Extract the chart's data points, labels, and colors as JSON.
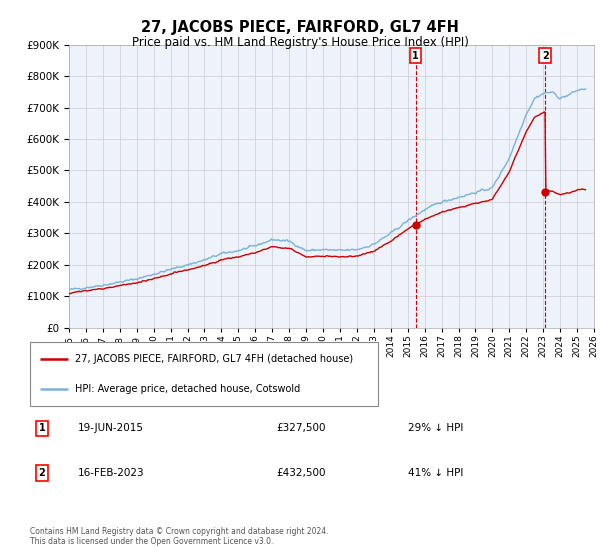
{
  "title": "27, JACOBS PIECE, FAIRFORD, GL7 4FH",
  "subtitle": "Price paid vs. HM Land Registry's House Price Index (HPI)",
  "hpi_label": "HPI: Average price, detached house, Cotswold",
  "pp_label": "27, JACOBS PIECE, FAIRFORD, GL7 4FH (detached house)",
  "hpi_color": "#7ab3d9",
  "pp_color": "#cc0000",
  "dashed_color": "#cc0000",
  "marker1_date_x": 2015.47,
  "marker1_price": 327500,
  "marker1_label": "19-JUN-2015",
  "marker1_amount": "£327,500",
  "marker1_pct": "29% ↓ HPI",
  "marker2_date_x": 2023.12,
  "marker2_price": 432500,
  "marker2_label": "16-FEB-2023",
  "marker2_amount": "£432,500",
  "marker2_pct": "41% ↓ HPI",
  "xlim": [
    1995,
    2026
  ],
  "ylim": [
    0,
    900000
  ],
  "yticks": [
    0,
    100000,
    200000,
    300000,
    400000,
    500000,
    600000,
    700000,
    800000,
    900000
  ],
  "xticks": [
    1995,
    1996,
    1997,
    1998,
    1999,
    2000,
    2001,
    2002,
    2003,
    2004,
    2005,
    2006,
    2007,
    2008,
    2009,
    2010,
    2011,
    2012,
    2013,
    2014,
    2015,
    2016,
    2017,
    2018,
    2019,
    2020,
    2021,
    2022,
    2023,
    2024,
    2025,
    2026
  ],
  "footer": "Contains HM Land Registry data © Crown copyright and database right 2024.\nThis data is licensed under the Open Government Licence v3.0.",
  "bg_color": "#ffffff",
  "grid_color": "#cccccc",
  "plot_bg": "#eef2fb"
}
